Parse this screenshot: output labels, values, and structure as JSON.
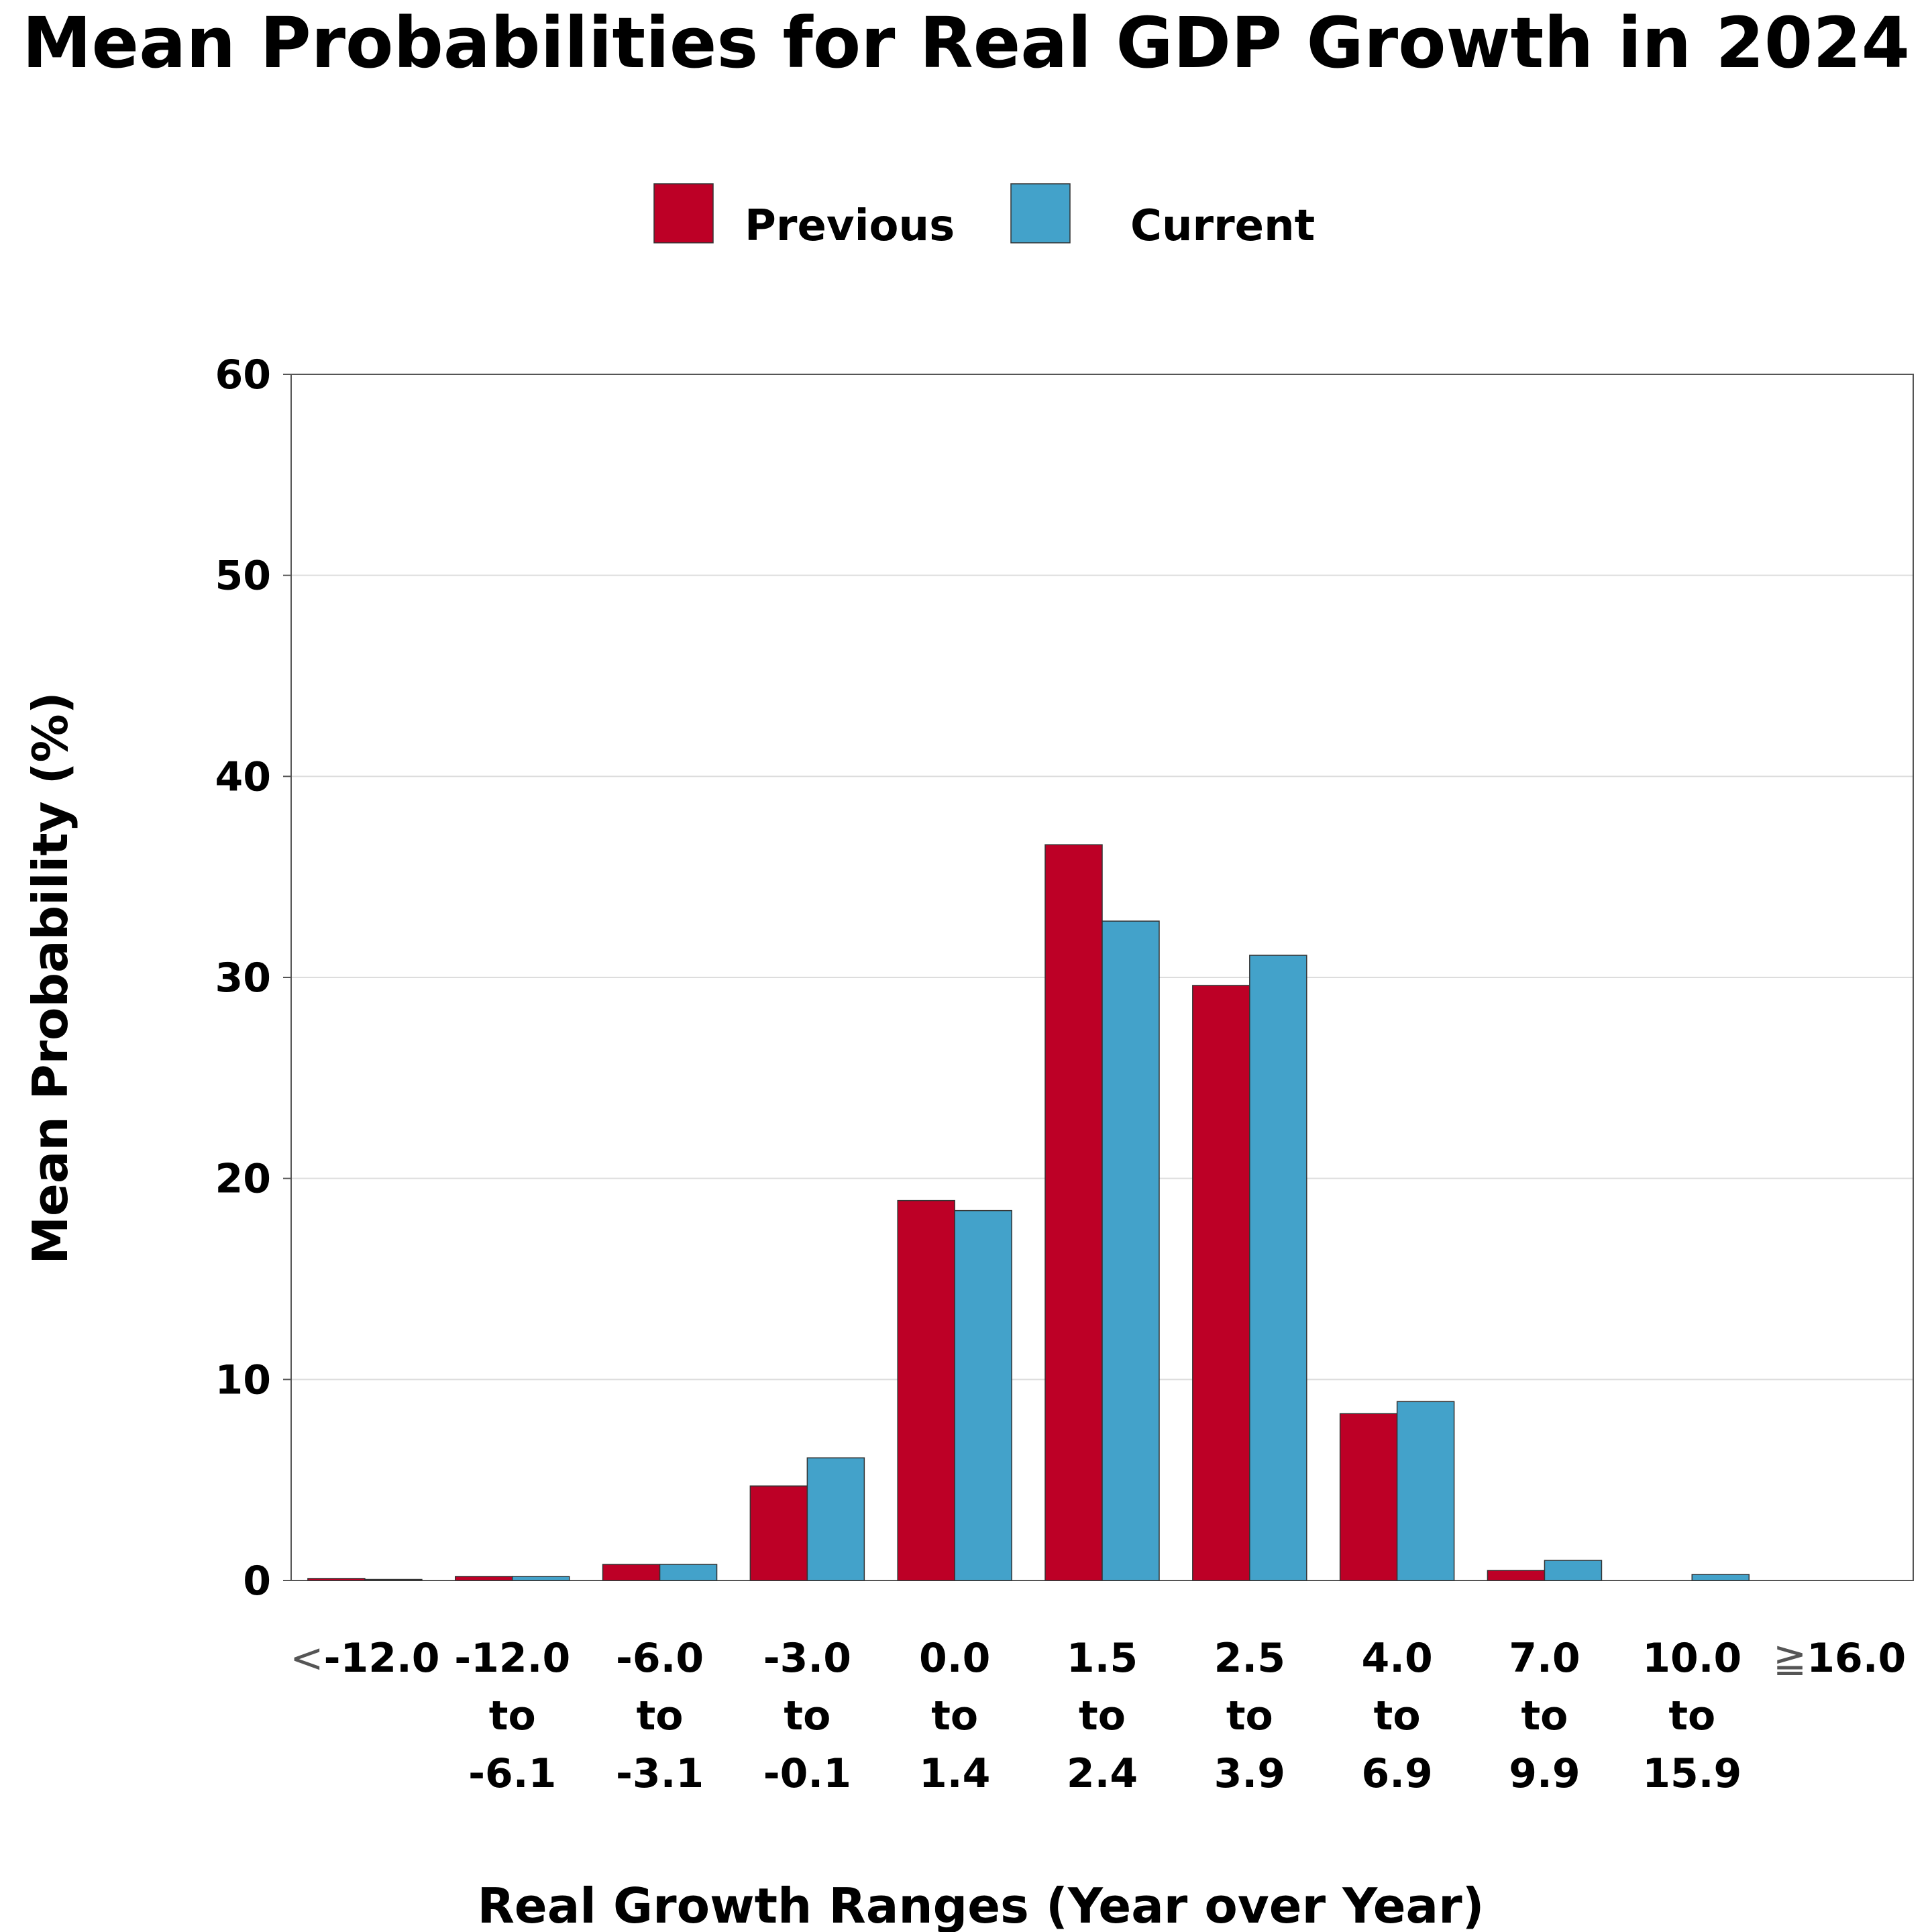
{
  "chart_data": {
    "type": "bar",
    "title": "Mean Probabilities for Real GDP Growth in 2024",
    "xlabel": "Real Growth Ranges (Year over Year)",
    "ylabel": "Mean Probability (%)",
    "ylim": [
      0,
      60
    ],
    "yticks": [
      0,
      10,
      20,
      30,
      40,
      50,
      60
    ],
    "grid": "horizontal",
    "legend_position": "top-center",
    "categories": [
      {
        "prefix": "<",
        "lines": [
          "-12.0"
        ]
      },
      {
        "prefix": "",
        "lines": [
          "-12.0",
          "to",
          "-6.1"
        ]
      },
      {
        "prefix": "",
        "lines": [
          "-6.0",
          "to",
          "-3.1"
        ]
      },
      {
        "prefix": "",
        "lines": [
          "-3.0",
          "to",
          "-0.1"
        ]
      },
      {
        "prefix": "",
        "lines": [
          "0.0",
          "to",
          "1.4"
        ]
      },
      {
        "prefix": "",
        "lines": [
          "1.5",
          "to",
          "2.4"
        ]
      },
      {
        "prefix": "",
        "lines": [
          "2.5",
          "to",
          "3.9"
        ]
      },
      {
        "prefix": "",
        "lines": [
          "4.0",
          "to",
          "6.9"
        ]
      },
      {
        "prefix": "",
        "lines": [
          "7.0",
          "to",
          "9.9"
        ]
      },
      {
        "prefix": "",
        "lines": [
          "10.0",
          "to",
          "15.9"
        ]
      },
      {
        "prefix": "≧",
        "lines": [
          "16.0"
        ]
      }
    ],
    "series": [
      {
        "name": "Previous",
        "color": "#BD0026",
        "values": [
          0.1,
          0.2,
          0.8,
          4.7,
          18.9,
          36.6,
          29.6,
          8.3,
          0.5,
          0.0,
          0.0
        ]
      },
      {
        "name": "Current",
        "color": "#43A2CA",
        "values": [
          0.05,
          0.2,
          0.8,
          6.1,
          18.4,
          32.8,
          31.1,
          8.9,
          1.0,
          0.3,
          0.0
        ]
      }
    ]
  }
}
